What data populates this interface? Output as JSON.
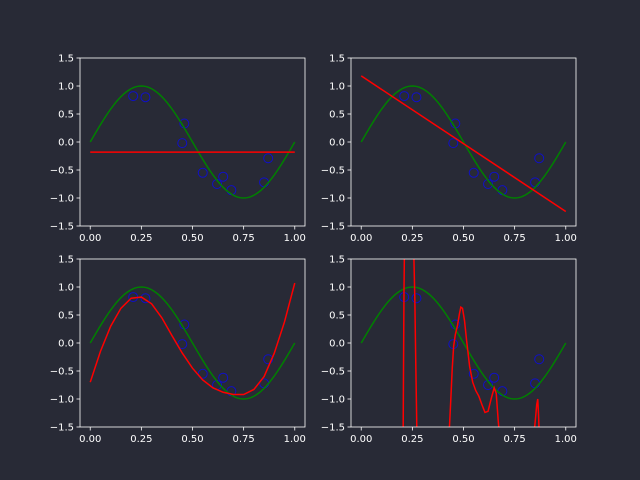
{
  "figure": {
    "background": "#282a36",
    "panel_background": "#282a36",
    "foreground": "#ffffff"
  },
  "chart_data": [
    {
      "type": "line",
      "xlim": [
        -0.05,
        1.05
      ],
      "ylim": [
        -1.5,
        1.5
      ],
      "xticks": [
        0.0,
        0.25,
        0.5,
        0.75,
        1.0
      ],
      "xtick_labels": [
        "0.00",
        "0.25",
        "0.50",
        "0.75",
        "1.00"
      ],
      "yticks": [
        -1.5,
        -1.0,
        -0.5,
        0.0,
        0.5,
        1.0,
        1.5
      ],
      "ytick_labels": [
        "−1.5",
        "−1.0",
        "−0.5",
        "0.0",
        "0.5",
        "1.0",
        "1.5"
      ],
      "grid": false,
      "series": [
        {
          "kind": "scatter",
          "color": "#1010c8",
          "marker": "open-circle",
          "x": [
            0.21,
            0.27,
            0.45,
            0.46,
            0.55,
            0.62,
            0.65,
            0.69,
            0.85,
            0.87
          ],
          "y": [
            0.82,
            0.8,
            -0.02,
            0.33,
            -0.55,
            -0.75,
            -0.62,
            -0.86,
            -0.72,
            -0.29
          ]
        },
        {
          "kind": "line",
          "color": "#008000",
          "function": "sin(2*pi*x)",
          "x_range": [
            0,
            1
          ]
        },
        {
          "kind": "line",
          "color": "#ff0000",
          "x": [
            0,
            1
          ],
          "y": [
            -0.18,
            -0.18
          ]
        }
      ]
    },
    {
      "type": "line",
      "xlim": [
        -0.05,
        1.05
      ],
      "ylim": [
        -1.5,
        1.5
      ],
      "xticks": [
        0.0,
        0.25,
        0.5,
        0.75,
        1.0
      ],
      "xtick_labels": [
        "0.00",
        "0.25",
        "0.50",
        "0.75",
        "1.00"
      ],
      "yticks": [
        -1.5,
        -1.0,
        -0.5,
        0.0,
        0.5,
        1.0,
        1.5
      ],
      "ytick_labels": [
        "−1.5",
        "−1.0",
        "−0.5",
        "0.0",
        "0.5",
        "1.0",
        "1.5"
      ],
      "grid": false,
      "series": [
        {
          "kind": "scatter",
          "color": "#1010c8",
          "marker": "open-circle",
          "x": [
            0.21,
            0.27,
            0.45,
            0.46,
            0.55,
            0.62,
            0.65,
            0.69,
            0.85,
            0.87
          ],
          "y": [
            0.82,
            0.8,
            -0.02,
            0.33,
            -0.55,
            -0.75,
            -0.62,
            -0.86,
            -0.72,
            -0.29
          ]
        },
        {
          "kind": "line",
          "color": "#008000",
          "function": "sin(2*pi*x)",
          "x_range": [
            0,
            1
          ]
        },
        {
          "kind": "line",
          "color": "#ff0000",
          "x": [
            0,
            1
          ],
          "y": [
            1.18,
            -1.24
          ]
        }
      ]
    },
    {
      "type": "line",
      "xlim": [
        -0.05,
        1.05
      ],
      "ylim": [
        -1.5,
        1.5
      ],
      "xticks": [
        0.0,
        0.25,
        0.5,
        0.75,
        1.0
      ],
      "xtick_labels": [
        "0.00",
        "0.25",
        "0.50",
        "0.75",
        "1.00"
      ],
      "yticks": [
        -1.5,
        -1.0,
        -0.5,
        0.0,
        0.5,
        1.0,
        1.5
      ],
      "ytick_labels": [
        "−1.5",
        "−1.0",
        "−0.5",
        "0.0",
        "0.5",
        "1.0",
        "1.5"
      ],
      "grid": false,
      "series": [
        {
          "kind": "scatter",
          "color": "#1010c8",
          "marker": "open-circle",
          "x": [
            0.21,
            0.27,
            0.45,
            0.46,
            0.55,
            0.62,
            0.65,
            0.69,
            0.85,
            0.87
          ],
          "y": [
            0.82,
            0.8,
            -0.02,
            0.33,
            -0.55,
            -0.75,
            -0.62,
            -0.86,
            -0.72,
            -0.29
          ]
        },
        {
          "kind": "line",
          "color": "#008000",
          "function": "sin(2*pi*x)",
          "x_range": [
            0,
            1
          ]
        },
        {
          "kind": "line",
          "color": "#ff0000",
          "x": [
            0.0,
            0.05,
            0.1,
            0.15,
            0.2,
            0.25,
            0.3,
            0.35,
            0.4,
            0.45,
            0.5,
            0.55,
            0.6,
            0.65,
            0.7,
            0.75,
            0.8,
            0.85,
            0.9,
            0.95,
            1.0
          ],
          "y": [
            -0.7,
            -0.15,
            0.3,
            0.62,
            0.8,
            0.82,
            0.7,
            0.45,
            0.13,
            -0.18,
            -0.45,
            -0.66,
            -0.8,
            -0.88,
            -0.92,
            -0.92,
            -0.83,
            -0.6,
            -0.18,
            0.38,
            1.07
          ]
        }
      ]
    },
    {
      "type": "line",
      "xlim": [
        -0.05,
        1.05
      ],
      "ylim": [
        -1.5,
        1.5
      ],
      "xticks": [
        0.0,
        0.25,
        0.5,
        0.75,
        1.0
      ],
      "xtick_labels": [
        "0.00",
        "0.25",
        "0.50",
        "0.75",
        "1.00"
      ],
      "yticks": [
        -1.5,
        -1.0,
        -0.5,
        0.0,
        0.5,
        1.0,
        1.5
      ],
      "ytick_labels": [
        "−1.5",
        "−1.0",
        "−0.5",
        "0.0",
        "0.5",
        "1.0",
        "1.5"
      ],
      "grid": false,
      "series": [
        {
          "kind": "scatter",
          "color": "#1010c8",
          "marker": "open-circle",
          "x": [
            0.21,
            0.27,
            0.45,
            0.46,
            0.55,
            0.62,
            0.65,
            0.69,
            0.85,
            0.87
          ],
          "y": [
            0.82,
            0.8,
            -0.02,
            0.33,
            -0.55,
            -0.75,
            -0.62,
            -0.86,
            -0.72,
            -0.29
          ]
        },
        {
          "kind": "line",
          "color": "#008000",
          "function": "sin(2*pi*x)",
          "x_range": [
            0,
            1
          ]
        },
        {
          "kind": "line",
          "color": "#ff0000",
          "x": [
            0.205,
            0.207,
            0.209,
            0.211
          ],
          "y": [
            -1.6,
            -0.3,
            0.9,
            1.6
          ]
        },
        {
          "kind": "line",
          "color": "#ff0000",
          "x": [
            0.257,
            0.262,
            0.266,
            0.27,
            0.272
          ],
          "y": [
            1.6,
            0.8,
            -0.2,
            -1.1,
            -1.6
          ]
        },
        {
          "kind": "line",
          "color": "#ff0000",
          "x": [
            0.43,
            0.438,
            0.445,
            0.452,
            0.46,
            0.47,
            0.48,
            0.487,
            0.495,
            0.505,
            0.515,
            0.53,
            0.545,
            0.56,
            0.575,
            0.59,
            0.605,
            0.62,
            0.635,
            0.65,
            0.66,
            0.665,
            0.67,
            0.675
          ],
          "y": [
            -1.6,
            -1.0,
            -0.45,
            -0.05,
            0.15,
            0.3,
            0.52,
            0.64,
            0.62,
            0.4,
            0.05,
            -0.42,
            -0.7,
            -0.85,
            -0.95,
            -1.1,
            -1.24,
            -1.22,
            -1.0,
            -0.8,
            -0.9,
            -1.15,
            -1.4,
            -1.6
          ]
        },
        {
          "kind": "line",
          "color": "#ff0000",
          "x": [
            0.845,
            0.852,
            0.858,
            0.863,
            0.867,
            0.87
          ],
          "y": [
            -1.6,
            -1.35,
            -1.1,
            -1.0,
            -1.3,
            -1.6
          ]
        }
      ]
    }
  ]
}
